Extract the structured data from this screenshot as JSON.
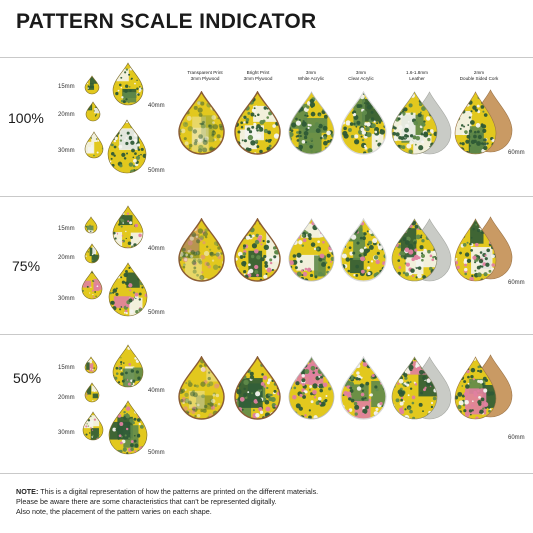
{
  "title": "PATTERN SCALE INDICATOR",
  "colors": {
    "yellow": "#e2c81e",
    "dark_green": "#2e5a36",
    "mid_green": "#5f8a4a",
    "pink": "#e07fa0",
    "white": "#f4f4f0",
    "leather": "#c9cbc6",
    "cork": "#c99a64",
    "wood_edge": "#8a5c34"
  },
  "sample_sizes": [
    "15mm",
    "20mm",
    "30mm",
    "40mm",
    "50mm"
  ],
  "materials": [
    {
      "line1": "Transparent Print",
      "line2": "3mm Plywood"
    },
    {
      "line1": "Bright Print",
      "line2": "3mm Plywood"
    },
    {
      "line1": "3mm",
      "line2": "White Acrylic"
    },
    {
      "line1": "3mm",
      "line2": "Clear Acrylic"
    },
    {
      "line1": "1.6-1.8mm",
      "line2": "Leather"
    },
    {
      "line1": "2mm",
      "line2": "Double Sided Cork"
    }
  ],
  "rows": [
    {
      "scale": "100%",
      "size_note": "60mm"
    },
    {
      "scale": "75%",
      "size_note": "60mm"
    },
    {
      "scale": "50%",
      "size_note": "60mm"
    }
  ],
  "note": {
    "label": "NOTE:",
    "line1": " This is a digital representation of how the patterns are printed on the different materials.",
    "line2": "Please be aware there are some characteristics that can't be represented digitally.",
    "line3": "Also note, the placement of the pattern varies on each shape."
  }
}
